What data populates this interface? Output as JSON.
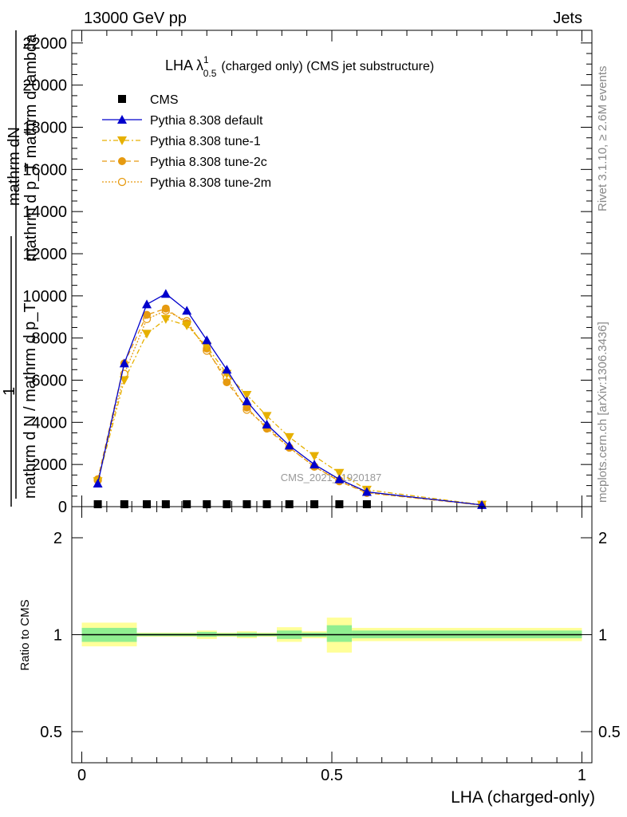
{
  "header": {
    "left": "13000 GeV pp",
    "right": "Jets"
  },
  "side_text": {
    "rivet": "Rivet 3.1.10, ≥ 2.6M events",
    "mcplots": "mcplots.cern.ch [arXiv:1306.3436]"
  },
  "watermark": "CMS_2021_I1920187",
  "colors": {
    "cms": "#000000",
    "default": "#0000cc",
    "tune1": "#e6b000",
    "tune2c": "#e69a10",
    "tune2m": "#e69a10",
    "band_inner": "#90ee90",
    "band_outer": "#ffff99"
  },
  "chart_data": [
    {
      "type": "line",
      "title_main": "LHA λ",
      "title_sup": "1",
      "title_sub": "0.5",
      "title_rest": "(charged only) (CMS jet substructure)",
      "ylabel_top": "mathrm dN",
      "ylabel_top2": "mathrm d p_T mathrm d lambda",
      "ylabel_one": "1",
      "ylabel_bottom": "mathrm d N / mathrm d p_T",
      "ylabel_sub_t": "T",
      "ylim": [
        0,
        22600
      ],
      "yticks": [
        0,
        2000,
        4000,
        6000,
        8000,
        10000,
        12000,
        14000,
        16000,
        18000,
        20000,
        22000
      ],
      "ytick_labels": [
        "0",
        "2000",
        "4000",
        "6000",
        "8000",
        "10000",
        "12000",
        "14000",
        "16000",
        "18000",
        "20000",
        "22000"
      ],
      "xlim": [
        -0.02,
        1.02
      ],
      "legend_position": "top-left",
      "series": [
        {
          "name": "CMS",
          "key": "cms",
          "marker": "square",
          "x": [
            0.032,
            0.085,
            0.13,
            0.168,
            0.21,
            0.25,
            0.29,
            0.33,
            0.37,
            0.415,
            0.465,
            0.515,
            0.57
          ],
          "y": [
            25,
            40,
            45,
            45,
            40,
            40,
            35,
            30,
            25,
            20,
            15,
            10,
            5
          ]
        },
        {
          "name": "Pythia 8.308 default",
          "key": "default",
          "marker": "triangle-up",
          "x": [
            0.032,
            0.085,
            0.13,
            0.168,
            0.21,
            0.25,
            0.29,
            0.33,
            0.37,
            0.415,
            0.465,
            0.515,
            0.57,
            0.8
          ],
          "y": [
            1100,
            6800,
            9600,
            10100,
            9300,
            7900,
            6500,
            5000,
            3900,
            2900,
            2000,
            1300,
            700,
            80
          ]
        },
        {
          "name": "Pythia 8.308 tune-1",
          "key": "tune1",
          "marker": "triangle-down",
          "x": [
            0.032,
            0.085,
            0.13,
            0.168,
            0.21,
            0.25,
            0.29,
            0.33,
            0.37,
            0.415,
            0.465,
            0.515,
            0.57,
            0.8
          ],
          "y": [
            1200,
            6000,
            8200,
            8900,
            8600,
            7600,
            6300,
            5300,
            4300,
            3300,
            2400,
            1600,
            800,
            90
          ]
        },
        {
          "name": "Pythia 8.308 tune-2c",
          "key": "tune2c",
          "marker": "circle",
          "x": [
            0.032,
            0.085,
            0.13,
            0.168,
            0.21,
            0.25,
            0.29,
            0.33,
            0.37,
            0.415,
            0.465,
            0.515,
            0.57,
            0.8
          ],
          "y": [
            1300,
            6800,
            9100,
            9400,
            8700,
            7500,
            5900,
            4700,
            3700,
            2800,
            1900,
            1200,
            650,
            70
          ]
        },
        {
          "name": "Pythia 8.308 tune-2m",
          "key": "tune2m",
          "marker": "circle-open",
          "x": [
            0.032,
            0.085,
            0.13,
            0.168,
            0.21,
            0.25,
            0.29,
            0.33,
            0.37,
            0.415,
            0.465,
            0.515,
            0.57,
            0.8
          ],
          "y": [
            1250,
            6300,
            8900,
            9300,
            8800,
            7400,
            6100,
            4600,
            3800,
            2800,
            1900,
            1250,
            670,
            75
          ]
        }
      ]
    },
    {
      "type": "area",
      "ylabel": "Ratio to CMS",
      "ylim": [
        0.4,
        2.3
      ],
      "yticks": [
        0.5,
        1,
        2
      ],
      "ytick_labels": [
        "0.5",
        "1",
        "2"
      ],
      "xlim": [
        -0.02,
        1.02
      ],
      "xticks": [
        0,
        0.5,
        1
      ],
      "xtick_labels": [
        "0",
        "0.5",
        "1"
      ],
      "xlabel": "LHA (charged-only)",
      "reference": 1,
      "bins": [
        {
          "x0": 0.0,
          "x1": 0.11,
          "inner": [
            0.95,
            1.05
          ],
          "outer": [
            0.92,
            1.09
          ]
        },
        {
          "x0": 0.11,
          "x1": 0.23,
          "inner": [
            0.99,
            1.01
          ],
          "outer": [
            0.985,
            1.015
          ]
        },
        {
          "x0": 0.23,
          "x1": 0.27,
          "inner": [
            0.985,
            1.02
          ],
          "outer": [
            0.97,
            1.03
          ]
        },
        {
          "x0": 0.27,
          "x1": 0.31,
          "inner": [
            0.99,
            1.01
          ],
          "outer": [
            0.985,
            1.015
          ]
        },
        {
          "x0": 0.31,
          "x1": 0.35,
          "inner": [
            0.985,
            1.015
          ],
          "outer": [
            0.975,
            1.025
          ]
        },
        {
          "x0": 0.35,
          "x1": 0.39,
          "inner": [
            0.99,
            1.01
          ],
          "outer": [
            0.985,
            1.015
          ]
        },
        {
          "x0": 0.39,
          "x1": 0.44,
          "inner": [
            0.97,
            1.03
          ],
          "outer": [
            0.95,
            1.055
          ]
        },
        {
          "x0": 0.44,
          "x1": 0.49,
          "inner": [
            0.985,
            1.015
          ],
          "outer": [
            0.975,
            1.025
          ]
        },
        {
          "x0": 0.49,
          "x1": 0.54,
          "inner": [
            0.95,
            1.07
          ],
          "outer": [
            0.88,
            1.13
          ]
        },
        {
          "x0": 0.54,
          "x1": 1.0,
          "inner": [
            0.975,
            1.03
          ],
          "outer": [
            0.955,
            1.05
          ]
        }
      ]
    }
  ]
}
